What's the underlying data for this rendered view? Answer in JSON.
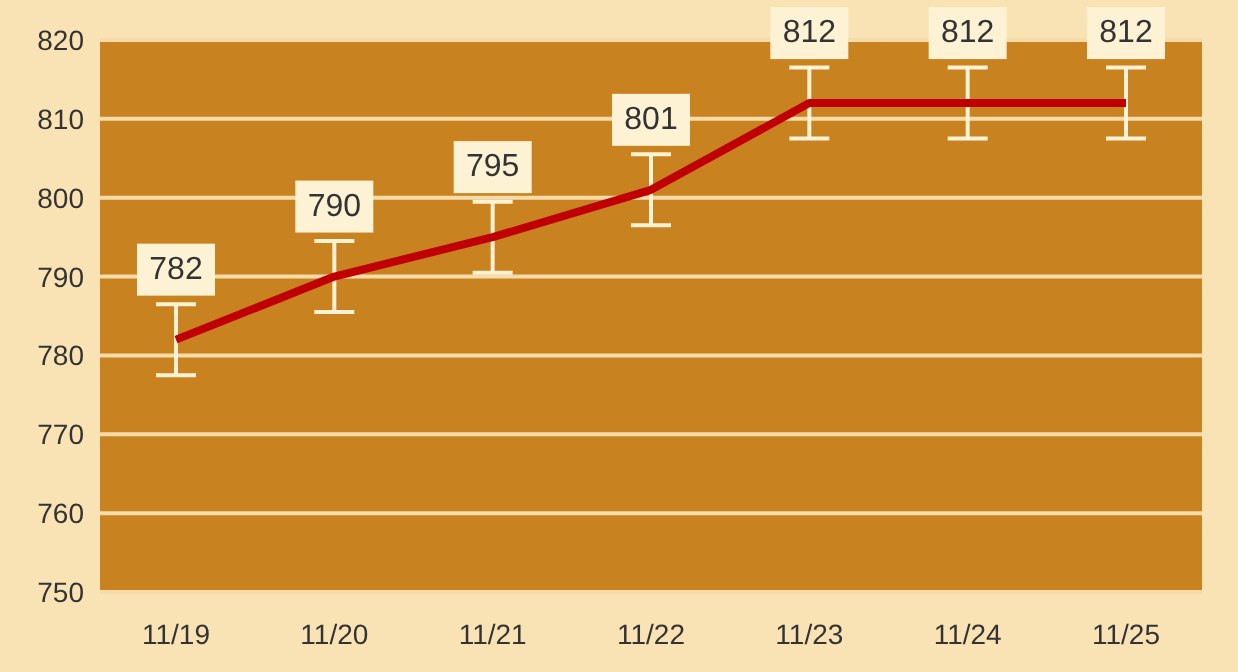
{
  "chart_data": {
    "type": "line",
    "categories": [
      "11/19",
      "11/20",
      "11/21",
      "11/22",
      "11/23",
      "11/24",
      "11/25"
    ],
    "series": [
      {
        "color": "#c00000",
        "values": [
          782,
          790,
          795,
          801,
          812,
          812,
          812
        ],
        "errors": [
          4.5,
          4.5,
          4.5,
          4.5,
          4.5,
          4.5,
          4.5
        ]
      }
    ],
    "ylim": [
      750,
      820
    ],
    "yticks": [
      750,
      760,
      770,
      780,
      790,
      800,
      810,
      820
    ],
    "grid": "y",
    "data_labels": true,
    "marker": "none",
    "line_style": "solid",
    "legend": false
  }
}
